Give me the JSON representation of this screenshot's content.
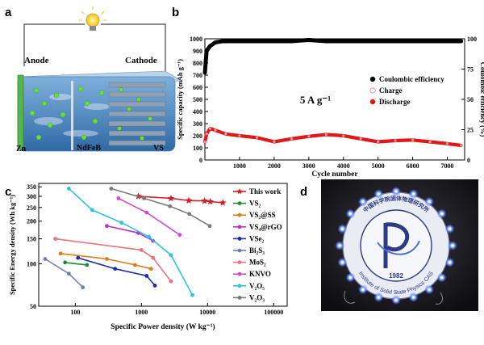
{
  "panels": {
    "a": {
      "letter": "a",
      "anode_label": "Anode",
      "cathode_label": "Cathode",
      "anode_electrode_label": "Zn",
      "cathode_electrode_label": "VS",
      "separator_label": "NdFeB"
    },
    "d": {
      "letter": "d",
      "logo_ring_text_top": "中国科学院固体物理研究所",
      "logo_ring_text_bottom": "Institute of Solid State Physics CAS",
      "logo_year": "1982"
    }
  },
  "chart_data": [
    {
      "panel": "b",
      "type": "scatter",
      "xlabel": "Cycle number",
      "ylabel": "Specific capacity (mAh g⁻¹)",
      "y2label": "Coulombic efficiency (%)",
      "xlim": [
        0,
        7500
      ],
      "ylim": [
        0,
        1000
      ],
      "y2lim": [
        0,
        100
      ],
      "xticks": [
        1000,
        2000,
        3000,
        4000,
        5000,
        6000,
        7000
      ],
      "yticks": [
        0,
        100,
        200,
        300,
        400,
        500,
        600,
        700,
        800,
        900,
        1000
      ],
      "y2ticks": [
        0,
        25,
        50,
        75,
        100
      ],
      "annotation": "5 A g⁻¹",
      "legend_position": "center-right",
      "series": [
        {
          "name": "Coulombic efficiency",
          "axis": "right",
          "color": "#000000",
          "x": [
            1,
            50,
            150,
            300,
            500,
            1000,
            1500,
            2000,
            2500,
            3000,
            3500,
            4000,
            4500,
            5000,
            5500,
            6000,
            6500,
            7000,
            7400
          ],
          "y": [
            72,
            90,
            94,
            97,
            98,
            98,
            98,
            98,
            98,
            99,
            98,
            98,
            98,
            98,
            98,
            98,
            98,
            98,
            98
          ]
        },
        {
          "name": "Charge",
          "axis": "left",
          "color": "#e59c9c",
          "x": [
            1,
            50,
            150,
            300,
            600,
            1000,
            1500,
            2000,
            2500,
            3000,
            3500,
            4000,
            4500,
            5000,
            5500,
            6000,
            6500,
            7000,
            7400
          ],
          "y": [
            150,
            215,
            260,
            245,
            215,
            200,
            185,
            150,
            175,
            195,
            210,
            200,
            175,
            150,
            160,
            165,
            150,
            135,
            120
          ]
        },
        {
          "name": "Discharge",
          "axis": "left",
          "color": "#e01818",
          "x": [
            1,
            50,
            150,
            300,
            600,
            1000,
            1500,
            2000,
            2500,
            3000,
            3500,
            4000,
            4500,
            5000,
            5500,
            6000,
            6500,
            7000,
            7400
          ],
          "y": [
            150,
            215,
            260,
            245,
            215,
            200,
            185,
            150,
            175,
            195,
            210,
            200,
            175,
            150,
            160,
            165,
            150,
            135,
            120
          ]
        }
      ]
    },
    {
      "panel": "c",
      "type": "line",
      "xlabel": "Specific Power density (W kg⁻¹)",
      "ylabel": "Specific Energy density (Wh kg⁻¹)",
      "xscale": "log",
      "yscale": "log",
      "xlim": [
        28,
        160000
      ],
      "ylim": [
        50,
        370
      ],
      "xticks": [
        100,
        1000,
        10000,
        100000
      ],
      "xticklabels": [
        "100",
        "1000",
        "10000",
        "100000"
      ],
      "yticks": [
        50,
        100,
        150,
        200,
        250,
        300,
        350
      ],
      "legend_position": "right",
      "series": [
        {
          "name": "This work",
          "color": "#d01e2a",
          "marker": "star",
          "x": [
            900,
            2800,
            5200,
            9000,
            11000,
            17000
          ],
          "y": [
            300,
            290,
            280,
            278,
            275,
            270
          ]
        },
        {
          "name": "VS₂",
          "color": "#1f8a3a",
          "marker": "circle",
          "x": [
            70,
            150
          ],
          "y": [
            102,
            98
          ]
        },
        {
          "name": "VS₂@SS",
          "color": "#e07b1a",
          "marker": "circle",
          "x": [
            60,
            300,
            800,
            1400
          ],
          "y": [
            118,
            108,
            98,
            92
          ]
        },
        {
          "name": "VS₄@rGO",
          "color": "#b832c4",
          "marker": "circle",
          "x": [
            300,
            900,
            1500
          ],
          "y": [
            185,
            165,
            145
          ]
        },
        {
          "name": "VSe₂",
          "color": "#1a2fa8",
          "marker": "circle",
          "x": [
            110,
            400,
            1200,
            1600
          ],
          "y": [
            110,
            92,
            82,
            70
          ]
        },
        {
          "name": "Bi₂S₃",
          "color": "#6b7fb0",
          "marker": "circle",
          "x": [
            35,
            80,
            130
          ],
          "y": [
            108,
            85,
            68
          ]
        },
        {
          "name": "MoS₂",
          "color": "#e8757a",
          "marker": "circle",
          "x": [
            50,
            1000,
            1500,
            2800
          ],
          "y": [
            150,
            125,
            110,
            75
          ]
        },
        {
          "name": "KNVO",
          "color": "#d34bcb",
          "marker": "circle",
          "x": [
            450,
            1200,
            3800
          ],
          "y": [
            290,
            230,
            160
          ]
        },
        {
          "name": "V₂O₅",
          "color": "#2ec5d8",
          "marker": "circle",
          "x": [
            80,
            180,
            500,
            1300,
            2800,
            5900
          ],
          "y": [
            340,
            240,
            195,
            155,
            115,
            60
          ]
        },
        {
          "name": "V₂O₃",
          "color": "#7a7a7a",
          "marker": "circle",
          "x": [
            350,
            1100,
            2700,
            5300,
            10800
          ],
          "y": [
            340,
            290,
            255,
            225,
            185
          ]
        }
      ]
    }
  ]
}
